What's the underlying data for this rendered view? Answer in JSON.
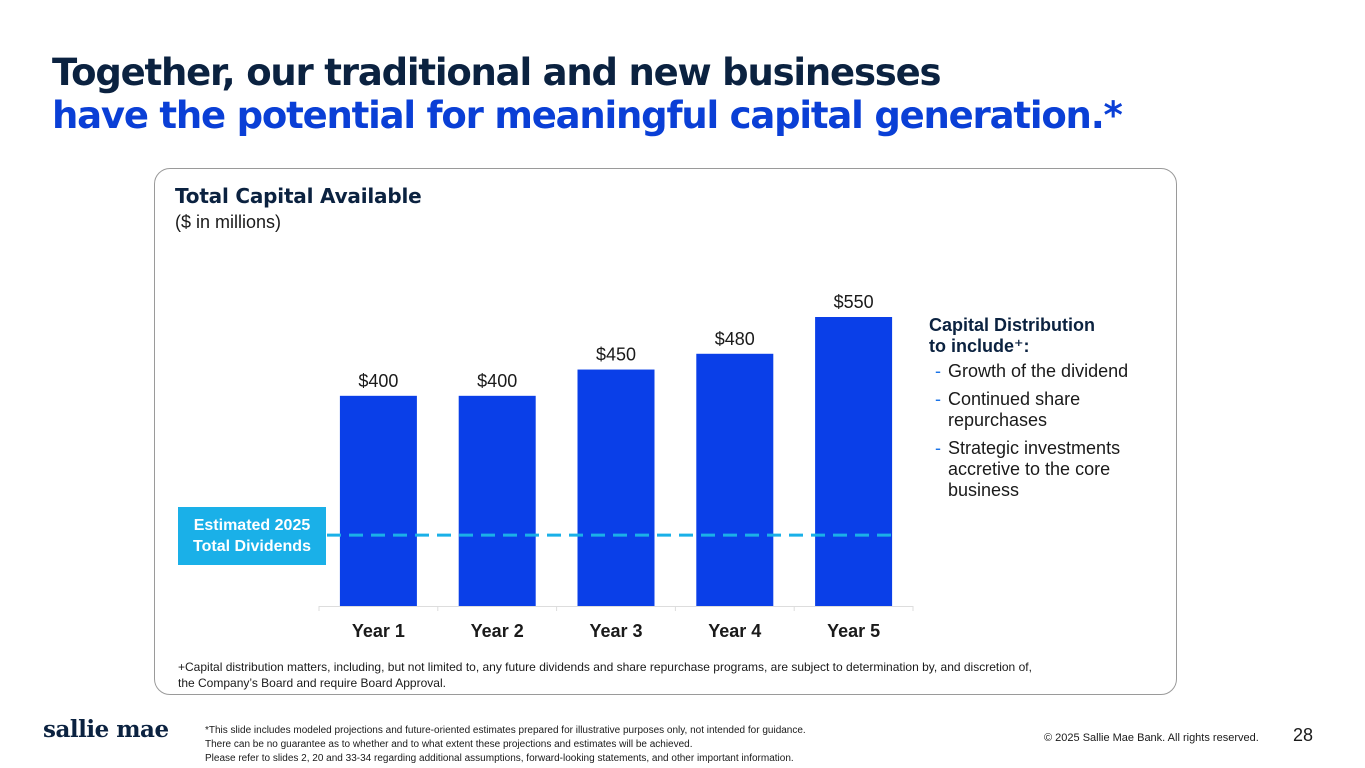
{
  "slide": {
    "title_line1": "Together, our traditional and new businesses",
    "title_line2": "have the potential for meaningful capital generation.*",
    "page_number": "28",
    "copyright": "© 2025 Sallie Mae Bank. All rights reserved.",
    "logo_text": "sallie mae",
    "disclaimer": [
      "*This slide includes modeled projections and future-oriented estimates prepared for illustrative purposes only, not intended for guidance.",
      "There can be no guarantee as to whether and to what extent these projections and estimates will be achieved.",
      "Please refer to slides 2, 20 and 33-34 regarding additional assumptions, forward-looking statements, and other important information."
    ]
  },
  "chart_data": {
    "type": "bar",
    "title": "Total Capital Available",
    "subtitle": "($ in millions)",
    "categories": [
      "Year 1",
      "Year 2",
      "Year 3",
      "Year 4",
      "Year 5"
    ],
    "values": [
      400,
      400,
      450,
      480,
      550
    ],
    "value_labels": [
      "$400",
      "$400",
      "$450",
      "$480",
      "$550"
    ],
    "ylim": [
      0,
      550
    ],
    "reference_line": {
      "label_line1": "Estimated 2025",
      "label_line2": "Total Dividends",
      "value": 135,
      "style": "dashed"
    },
    "colors": {
      "bar": "#0a3fe8",
      "reference_line": "#1ab0e8",
      "axis": "#dddddd"
    }
  },
  "distribution": {
    "heading_line1": "Capital Distribution",
    "heading_line2": "to include⁺:",
    "items": [
      "Growth of the dividend",
      "Continued share repurchases",
      "Strategic investments accretive to the core business"
    ]
  },
  "footnote": [
    "+Capital distribution matters, including, but not limited to, any future dividends and share repurchase programs, are subject to determination by, and discretion of,",
    "the Company’s Board and require Board Approval."
  ]
}
